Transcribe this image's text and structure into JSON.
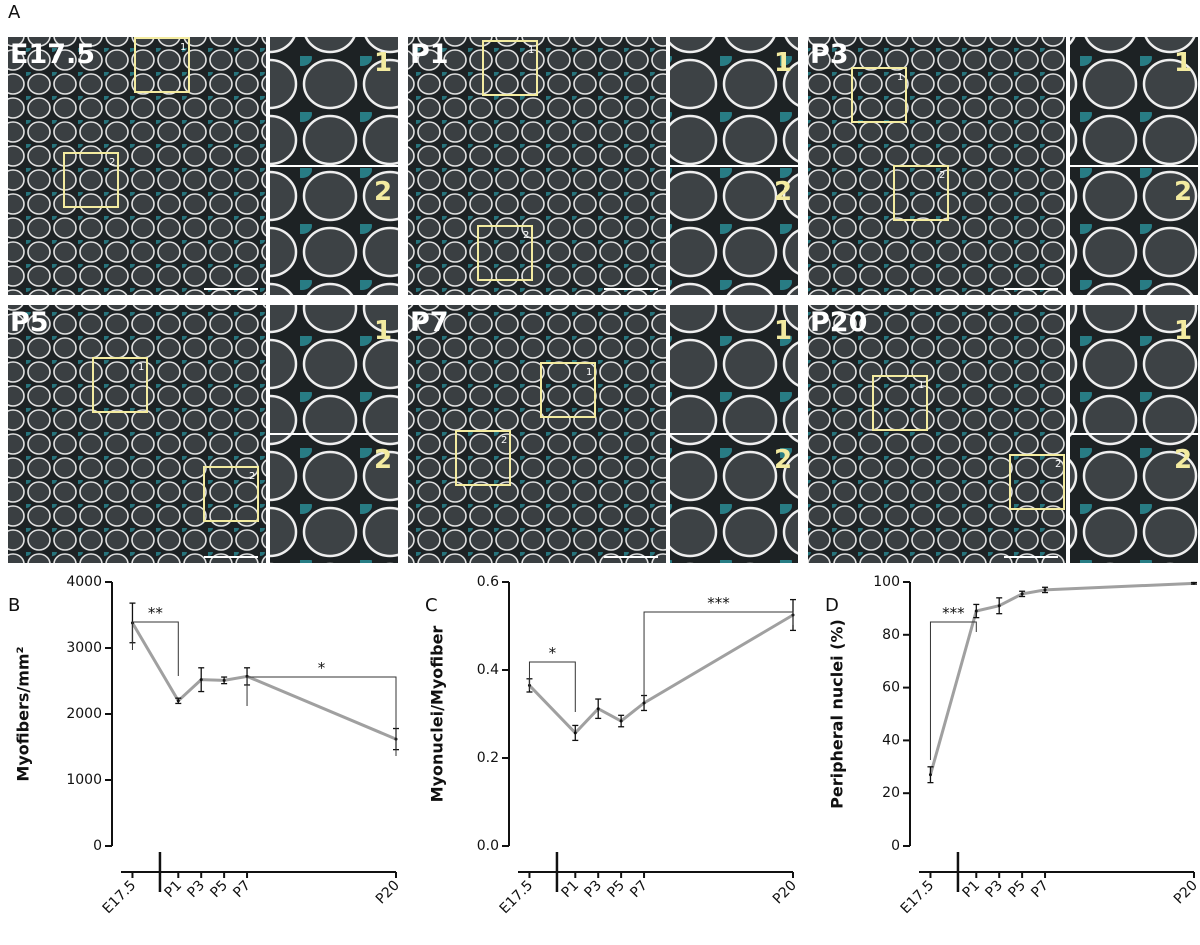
{
  "panel_a": {
    "label": "A",
    "panels": [
      {
        "label": "E17.5",
        "boxes": [
          "1",
          "2"
        ]
      },
      {
        "label": "P1",
        "boxes": [
          "1",
          "2"
        ]
      },
      {
        "label": "P3",
        "boxes": [
          "1",
          "2"
        ]
      },
      {
        "label": "P5",
        "boxes": [
          "1",
          "2"
        ]
      },
      {
        "label": "P7",
        "boxes": [
          "1",
          "2"
        ]
      },
      {
        "label": "P20",
        "boxes": [
          "1",
          "2"
        ]
      }
    ]
  },
  "chart_data": [
    {
      "panel_label": "B",
      "type": "line",
      "ylabel": "Myofibers/mm²",
      "x": [
        -3,
        1,
        3,
        5,
        7,
        20
      ],
      "xlim": [
        -4,
        20
      ],
      "xticks": [
        {
          "value": -3,
          "label": "E17.5"
        },
        {
          "value": 1,
          "label": "P1"
        },
        {
          "value": 3,
          "label": "P3"
        },
        {
          "value": 5,
          "label": "P5"
        },
        {
          "value": 7,
          "label": "P7"
        },
        {
          "value": 20,
          "label": "P20"
        }
      ],
      "series": [
        {
          "color": "#a0a0a0",
          "values": [
            3380,
            2200,
            2520,
            2510,
            2570,
            1620
          ],
          "errors": [
            300,
            40,
            180,
            50,
            130,
            160
          ]
        }
      ],
      "ylim": [
        0,
        4000
      ],
      "yticks": [
        0,
        1000,
        2000,
        3000,
        4000
      ],
      "annotations": [
        "**",
        "*"
      ]
    },
    {
      "panel_label": "C",
      "type": "line",
      "ylabel": "Myonuclei/Myofiber",
      "x": [
        -3,
        1,
        3,
        5,
        7,
        20
      ],
      "xlim": [
        -4,
        20
      ],
      "xticks": [
        {
          "value": -3,
          "label": "E17.5"
        },
        {
          "value": 1,
          "label": "P1"
        },
        {
          "value": 3,
          "label": "P3"
        },
        {
          "value": 5,
          "label": "P5"
        },
        {
          "value": 7,
          "label": "P7"
        },
        {
          "value": 20,
          "label": "P20"
        }
      ],
      "series": [
        {
          "color": "#a0a0a0",
          "values": [
            0.365,
            0.257,
            0.312,
            0.284,
            0.325,
            0.525
          ],
          "errors": [
            0.015,
            0.017,
            0.022,
            0.013,
            0.017,
            0.035
          ]
        }
      ],
      "ylim": [
        0,
        0.6
      ],
      "yticks": [
        {
          "value": 0,
          "label": "0.0"
        },
        0.2,
        0.4,
        0.6
      ],
      "annotations": [
        "*",
        "***"
      ]
    },
    {
      "panel_label": "D",
      "type": "line",
      "ylabel": "Peripheral nuclei (%)",
      "x": [
        -3,
        1,
        3,
        5,
        7,
        20
      ],
      "xlim": [
        -4,
        20
      ],
      "xticks": [
        {
          "value": -3,
          "label": "E17.5"
        },
        {
          "value": 1,
          "label": "P1"
        },
        {
          "value": 3,
          "label": "P3"
        },
        {
          "value": 5,
          "label": "P5"
        },
        {
          "value": 7,
          "label": "P7"
        },
        {
          "value": 20,
          "label": "P20"
        }
      ],
      "series": [
        {
          "color": "#a0a0a0",
          "values": [
            27,
            89,
            91,
            95.5,
            97,
            99.5
          ],
          "errors": [
            3,
            2.5,
            3,
            1,
            1,
            0.3
          ]
        }
      ],
      "ylim": [
        0,
        100
      ],
      "yticks": [
        0,
        20,
        40,
        60,
        80,
        100
      ],
      "annotations": [
        "***"
      ]
    }
  ]
}
